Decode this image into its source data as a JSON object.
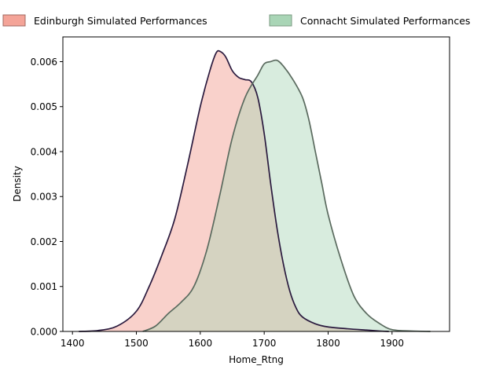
{
  "chart_data": {
    "type": "area",
    "title": "",
    "xlabel": "Home_Rtng",
    "ylabel": "Density",
    "xlim": [
      1385,
      1990
    ],
    "ylim": [
      0,
      0.00655
    ],
    "xticks": [
      1400,
      1500,
      1600,
      1700,
      1800,
      1900
    ],
    "yticks": [
      0.0,
      0.001,
      0.002,
      0.003,
      0.004,
      0.005,
      0.006
    ],
    "ytick_labels": [
      "0.000",
      "0.001",
      "0.002",
      "0.003",
      "0.004",
      "0.005",
      "0.006"
    ],
    "grid": false,
    "legend_position": "top, outside plot, two columns",
    "series": [
      {
        "name": "Edinburgh Simulated Performances",
        "fill_color": "#f4a498",
        "line_color": "#2a1a3e",
        "x": [
          1410,
          1440,
          1470,
          1500,
          1520,
          1540,
          1560,
          1580,
          1600,
          1615,
          1625,
          1632,
          1640,
          1650,
          1660,
          1670,
          1680,
          1690,
          1700,
          1710,
          1720,
          1730,
          1740,
          1750,
          1760,
          1780,
          1800,
          1830,
          1860,
          1880,
          1895
        ],
        "y": [
          0.0,
          2e-05,
          0.00012,
          0.00045,
          0.001,
          0.0017,
          0.0025,
          0.0037,
          0.005,
          0.0058,
          0.0062,
          0.00622,
          0.0061,
          0.0058,
          0.00565,
          0.0056,
          0.00555,
          0.0052,
          0.0044,
          0.0033,
          0.0023,
          0.0015,
          0.0009,
          0.00052,
          0.00032,
          0.00017,
          0.0001,
          6e-05,
          3e-05,
          1e-05,
          0.0
        ]
      },
      {
        "name": "Connacht Simulated Performances",
        "fill_color": "#a9d5b6",
        "line_color": "#5a6a5e",
        "x": [
          1510,
          1530,
          1550,
          1570,
          1590,
          1610,
          1630,
          1650,
          1670,
          1690,
          1700,
          1710,
          1720,
          1730,
          1745,
          1760,
          1770,
          1780,
          1790,
          1800,
          1820,
          1840,
          1860,
          1880,
          1900,
          1930,
          1960
        ],
        "y": [
          0.0,
          0.00012,
          0.0004,
          0.00065,
          0.001,
          0.0018,
          0.003,
          0.0043,
          0.0052,
          0.0057,
          0.00595,
          0.006,
          0.00603,
          0.0059,
          0.0056,
          0.0052,
          0.0047,
          0.004,
          0.0033,
          0.0026,
          0.0016,
          0.0008,
          0.0004,
          0.00018,
          4e-05,
          1e-05,
          0.0
        ]
      }
    ]
  }
}
